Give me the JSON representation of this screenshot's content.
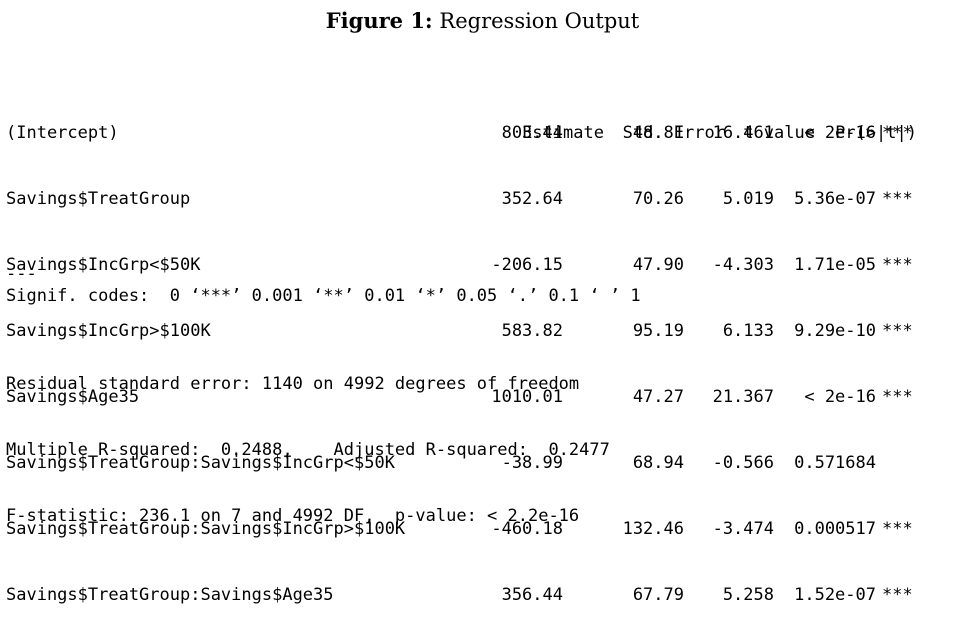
{
  "caption": {
    "label": "Figure 1:",
    "title": "Regression Output"
  },
  "table": {
    "headers": [
      "Estimate",
      "Std. Error",
      "t value",
      "Pr(>|t|)"
    ],
    "rows": [
      {
        "name": "(Intercept)",
        "estimate": "803.44",
        "std_error": "48.81",
        "t_value": "16.461",
        "p_value": "< 2e-16",
        "signif": "***"
      },
      {
        "name": "Savings$TreatGroup",
        "estimate": "352.64",
        "std_error": "70.26",
        "t_value": "5.019",
        "p_value": "5.36e-07",
        "signif": "***"
      },
      {
        "name": "Savings$IncGrp<$50K",
        "estimate": "-206.15",
        "std_error": "47.90",
        "t_value": "-4.303",
        "p_value": "1.71e-05",
        "signif": "***"
      },
      {
        "name": "Savings$IncGrp>$100K",
        "estimate": "583.82",
        "std_error": "95.19",
        "t_value": "6.133",
        "p_value": "9.29e-10",
        "signif": "***"
      },
      {
        "name": "Savings$Age35",
        "estimate": "1010.01",
        "std_error": "47.27",
        "t_value": "21.367",
        "p_value": "< 2e-16",
        "signif": "***"
      },
      {
        "name": "Savings$TreatGroup:Savings$IncGrp<$50K",
        "estimate": "-38.99",
        "std_error": "68.94",
        "t_value": "-0.566",
        "p_value": "0.571684",
        "signif": ""
      },
      {
        "name": "Savings$TreatGroup:Savings$IncGrp>$100K",
        "estimate": "-460.18",
        "std_error": "132.46",
        "t_value": "-3.474",
        "p_value": "0.000517",
        "signif": "***"
      },
      {
        "name": "Savings$TreatGroup:Savings$Age35",
        "estimate": "356.44",
        "std_error": "67.79",
        "t_value": "5.258",
        "p_value": "1.52e-07",
        "signif": "***"
      }
    ]
  },
  "separator": "---",
  "signif_codes": "Signif. codes:  0 ‘***’ 0.001 ‘**’ 0.01 ‘*’ 0.05 ‘.’ 0.1 ‘ ’ 1",
  "summary": {
    "residual_se": "Residual standard error: 1140 on 4992 degrees of freedom",
    "r_squared": "Multiple R-squared:  0.2488,\tAdjusted R-squared:  0.2477",
    "f_statistic": "F-statistic: 236.1 on 7 and 4992 DF,  p-value: < 2.2e-16"
  }
}
